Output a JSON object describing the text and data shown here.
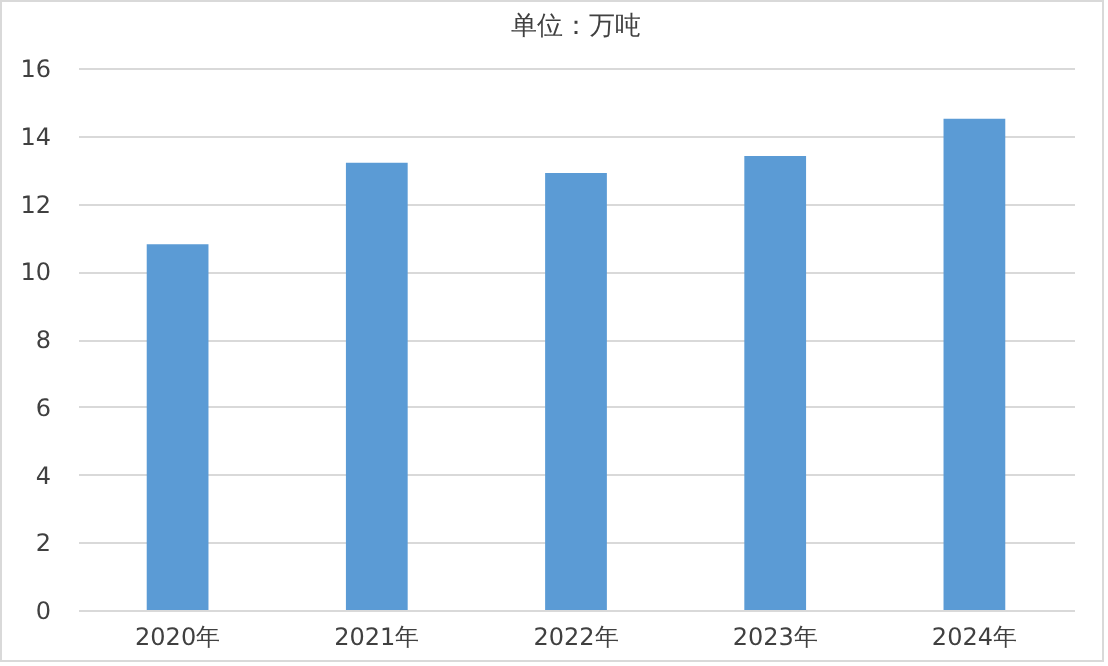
{
  "chart_data": {
    "type": "bar",
    "title": "单位：万吨",
    "categories": [
      "2020年",
      "2021年",
      "2022年",
      "2023年",
      "2024年"
    ],
    "values": [
      10.8,
      13.2,
      12.9,
      13.4,
      14.5
    ],
    "color": "#5b9bd5",
    "ylim": [
      0,
      16
    ],
    "yticks": [
      0,
      2,
      4,
      6,
      8,
      10,
      12,
      14,
      16
    ],
    "grid": "y"
  }
}
